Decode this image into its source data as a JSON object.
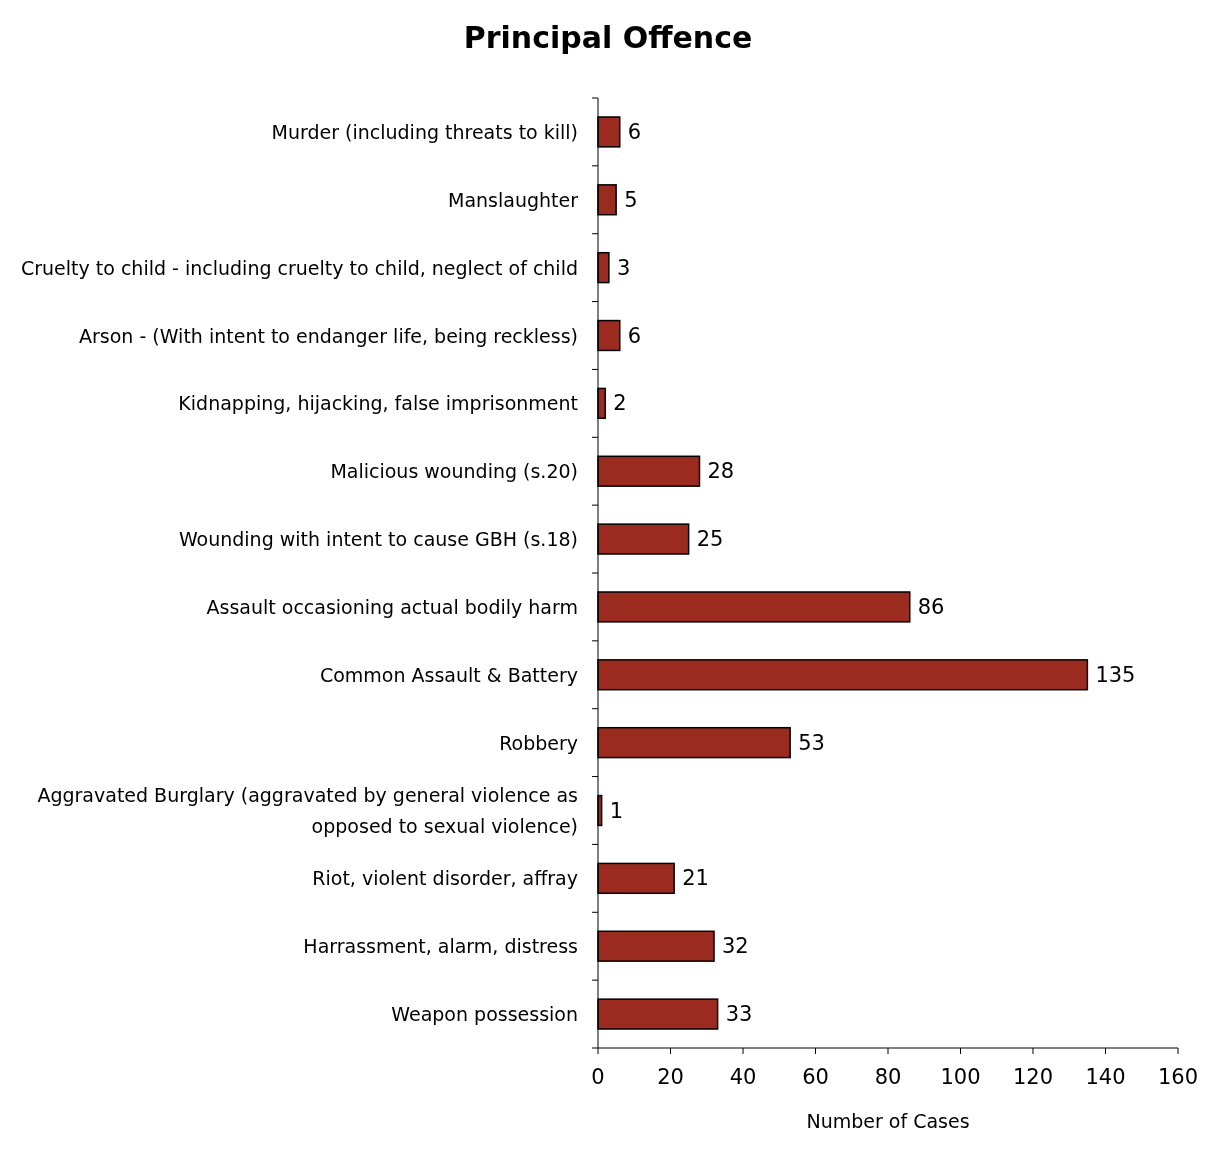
{
  "chart_data": {
    "type": "bar",
    "orientation": "horizontal",
    "title": "Principal Offence",
    "xlabel": "Number of Cases",
    "categories": [
      "Murder (including threats to kill)",
      "Manslaughter",
      "Cruelty to child - including cruelty to child, neglect of child",
      "Arson - (With intent to endanger life, being reckless)",
      "Kidnapping, hijacking, false imprisonment",
      "Malicious wounding (s.20)",
      "Wounding with intent to cause GBH (s.18)",
      "Assault occasioning actual bodily harm",
      "Common Assault & Battery",
      "Robbery",
      "Aggravated Burglary (aggravated by general violence as opposed to sexual violence)",
      "Riot, violent disorder, affray",
      "Harrassment, alarm, distress",
      "Weapon possession"
    ],
    "values": [
      6,
      5,
      3,
      6,
      2,
      28,
      25,
      86,
      135,
      53,
      1,
      21,
      32,
      33
    ],
    "color": "#9c2b1f",
    "xlim": [
      0,
      160
    ],
    "xticks": [
      0,
      20,
      40,
      60,
      80,
      100,
      120,
      140,
      160
    ],
    "data_labels": true,
    "grid": false
  }
}
